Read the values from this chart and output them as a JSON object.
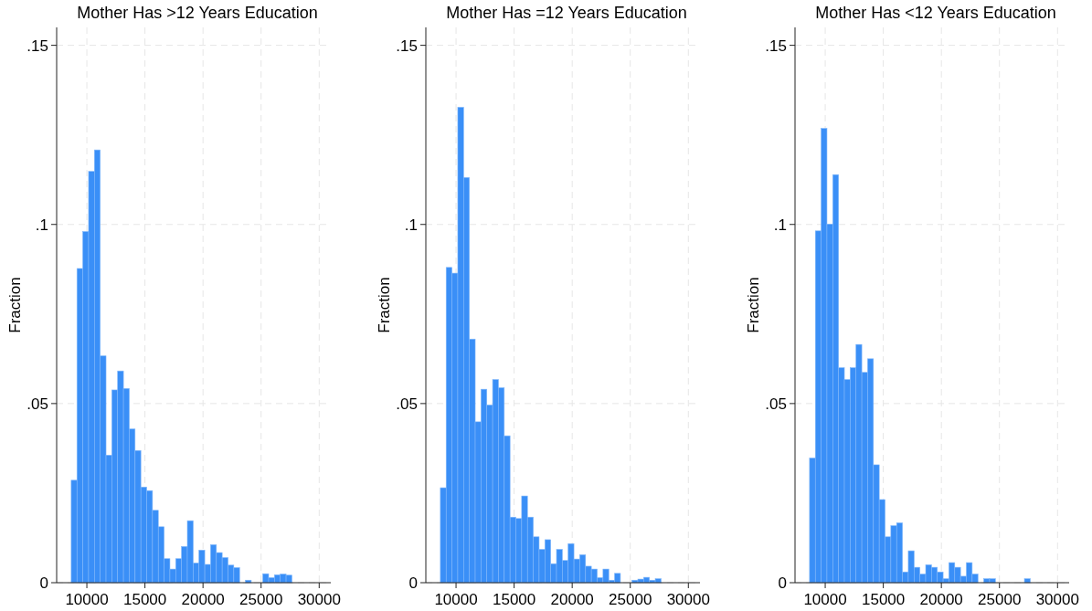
{
  "chart_data": [
    {
      "type": "histogram",
      "title": "Mother Has >12 Years Education",
      "ylabel": "Fraction",
      "color": "#3a8ff7",
      "bins": [
        8650,
        9150,
        9650,
        10150,
        10650,
        11150,
        11650,
        12150,
        12650,
        13150,
        13650,
        14150,
        14650,
        15150,
        15650,
        16150,
        16650,
        17150,
        17650,
        18150,
        18650,
        19150,
        19650,
        20150,
        20650,
        21150,
        21650,
        22150,
        22650,
        23150,
        23650,
        24150,
        24650,
        25150,
        25650,
        26150,
        26650,
        27150,
        27650
      ],
      "values": [
        0.0286,
        0.0877,
        0.098,
        0.1148,
        0.1208,
        0.0633,
        0.0356,
        0.0538,
        0.0591,
        0.0542,
        0.0429,
        0.0369,
        0.0267,
        0.0257,
        0.0202,
        0.0156,
        0.0067,
        0.0038,
        0.0067,
        0.0101,
        0.0173,
        0.0055,
        0.0091,
        0.0051,
        0.0106,
        0.0084,
        0.007,
        0.0049,
        0.0042,
        0,
        0.0007,
        0,
        0,
        0.0025,
        0.0014,
        0.0022,
        0.0024,
        0.0021
      ],
      "xlim": [
        7400,
        31000
      ],
      "ylim": [
        0,
        0.155
      ],
      "xticks": [
        10000,
        15000,
        20000,
        25000,
        30000
      ],
      "yticks": [
        {
          "value": 0,
          "label": "0"
        },
        {
          "value": 0.05,
          "label": ".05"
        },
        {
          "value": 0.1,
          "label": ".1"
        },
        {
          "value": 0.15,
          "label": ".15"
        }
      ],
      "grid": true
    },
    {
      "type": "histogram",
      "title": "Mother Has =12 Years Education",
      "ylabel": "Fraction",
      "color": "#3a8ff7",
      "bins": [
        8650,
        9150,
        9650,
        10150,
        10650,
        11150,
        11650,
        12150,
        12650,
        13150,
        13650,
        14150,
        14650,
        15150,
        15650,
        16150,
        16650,
        17150,
        17650,
        18150,
        18650,
        19150,
        19650,
        20150,
        20650,
        21150,
        21650,
        22150,
        22650,
        23150,
        23650,
        24150,
        24650,
        25150,
        25650,
        26150,
        26650,
        27150,
        27650
      ],
      "values": [
        0.0265,
        0.088,
        0.0864,
        0.1327,
        0.1131,
        0.068,
        0.0449,
        0.054,
        0.0496,
        0.0567,
        0.0544,
        0.041,
        0.0183,
        0.0179,
        0.0242,
        0.0183,
        0.0128,
        0.0093,
        0.012,
        0.0053,
        0.0093,
        0.0062,
        0.0109,
        0.0066,
        0.0078,
        0.0046,
        0.0038,
        0.0014,
        0.0038,
        0.0007,
        0.0026,
        0,
        0,
        0.0007,
        0.001,
        0.0015,
        0.0007,
        0.0011
      ],
      "xlim": [
        7400,
        31000
      ],
      "ylim": [
        0,
        0.155
      ],
      "xticks": [
        10000,
        15000,
        20000,
        25000,
        30000
      ],
      "yticks": [
        {
          "value": 0,
          "label": "0"
        },
        {
          "value": 0.05,
          "label": ".05"
        },
        {
          "value": 0.1,
          "label": ".1"
        },
        {
          "value": 0.15,
          "label": ".15"
        }
      ],
      "grid": true
    },
    {
      "type": "histogram",
      "title": "Mother Has <12 Years Education",
      "ylabel": "Fraction",
      "color": "#3a8ff7",
      "bins": [
        8650,
        9150,
        9650,
        10150,
        10650,
        11150,
        11650,
        12150,
        12650,
        13150,
        13650,
        14150,
        14650,
        15150,
        15650,
        16150,
        16650,
        17150,
        17650,
        18150,
        18650,
        19150,
        19650,
        20150,
        20650,
        21150,
        21650,
        22150,
        22650,
        23150,
        23650,
        24150,
        24650,
        25150,
        25650,
        26150,
        26650,
        27150,
        27650
      ],
      "values": [
        0.0348,
        0.0982,
        0.1268,
        0.1001,
        0.1139,
        0.06,
        0.0567,
        0.06,
        0.0665,
        0.0587,
        0.0625,
        0.0329,
        0.0232,
        0.0128,
        0.0159,
        0.0167,
        0.003,
        0.0089,
        0.0043,
        0.0024,
        0.005,
        0.0043,
        0.003,
        0.0011,
        0.0056,
        0.0043,
        0.0018,
        0.0056,
        0.0024,
        0,
        0.0011,
        0.0011,
        0,
        0,
        0,
        0,
        0,
        0.0011
      ],
      "xlim": [
        7400,
        31000
      ],
      "ylim": [
        0,
        0.155
      ],
      "xticks": [
        10000,
        15000,
        20000,
        25000,
        30000
      ],
      "yticks": [
        {
          "value": 0,
          "label": "0"
        },
        {
          "value": 0.05,
          "label": ".05"
        },
        {
          "value": 0.1,
          "label": ".1"
        },
        {
          "value": 0.15,
          "label": ".15"
        }
      ],
      "grid": true
    }
  ]
}
